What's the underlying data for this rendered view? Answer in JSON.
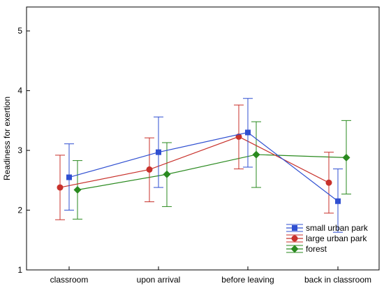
{
  "chart_data": {
    "type": "line",
    "title": "",
    "xlabel": "",
    "ylabel": "Readiness for exertion",
    "categories": [
      "classroom",
      "upon arrival",
      "before leaving",
      "back in classroom"
    ],
    "ylim": [
      1,
      5.4
    ],
    "yticks": [
      1,
      2,
      3,
      4,
      5
    ],
    "grid": false,
    "legend_position": "bottom-right",
    "series": [
      {
        "name": "small urban park",
        "color": "#2f4fd1",
        "marker": "square",
        "values": [
          2.55,
          2.97,
          3.3,
          2.15
        ],
        "lower": [
          2.0,
          2.38,
          2.72,
          1.63
        ],
        "upper": [
          3.11,
          3.56,
          3.87,
          2.69
        ]
      },
      {
        "name": "large urban park",
        "color": "#c8312b",
        "marker": "circle",
        "values": [
          2.38,
          2.68,
          3.23,
          2.46
        ],
        "lower": [
          1.84,
          2.14,
          2.69,
          1.95
        ],
        "upper": [
          2.92,
          3.21,
          3.76,
          2.97
        ]
      },
      {
        "name": "forest",
        "color": "#2a8a1f",
        "marker": "diamond",
        "values": [
          2.34,
          2.6,
          2.93,
          2.88
        ],
        "lower": [
          1.85,
          2.06,
          2.38,
          2.27
        ],
        "upper": [
          2.83,
          3.13,
          3.48,
          3.5
        ]
      }
    ]
  }
}
